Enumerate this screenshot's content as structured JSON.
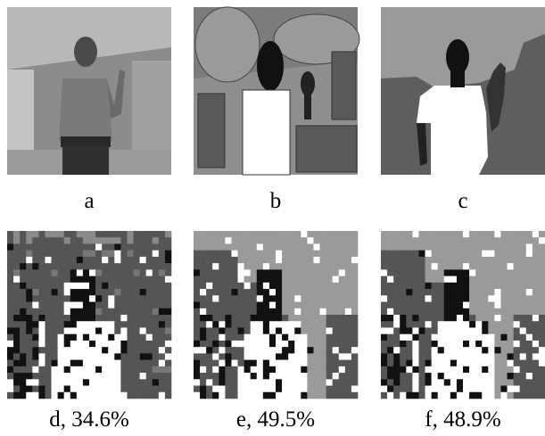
{
  "panels": [
    {
      "label": "a"
    },
    {
      "label": "b"
    },
    {
      "label": "c"
    },
    {
      "label": "d, 34.6%"
    },
    {
      "label": "e, 49.5%"
    },
    {
      "label": "f, 48.9%"
    }
  ]
}
